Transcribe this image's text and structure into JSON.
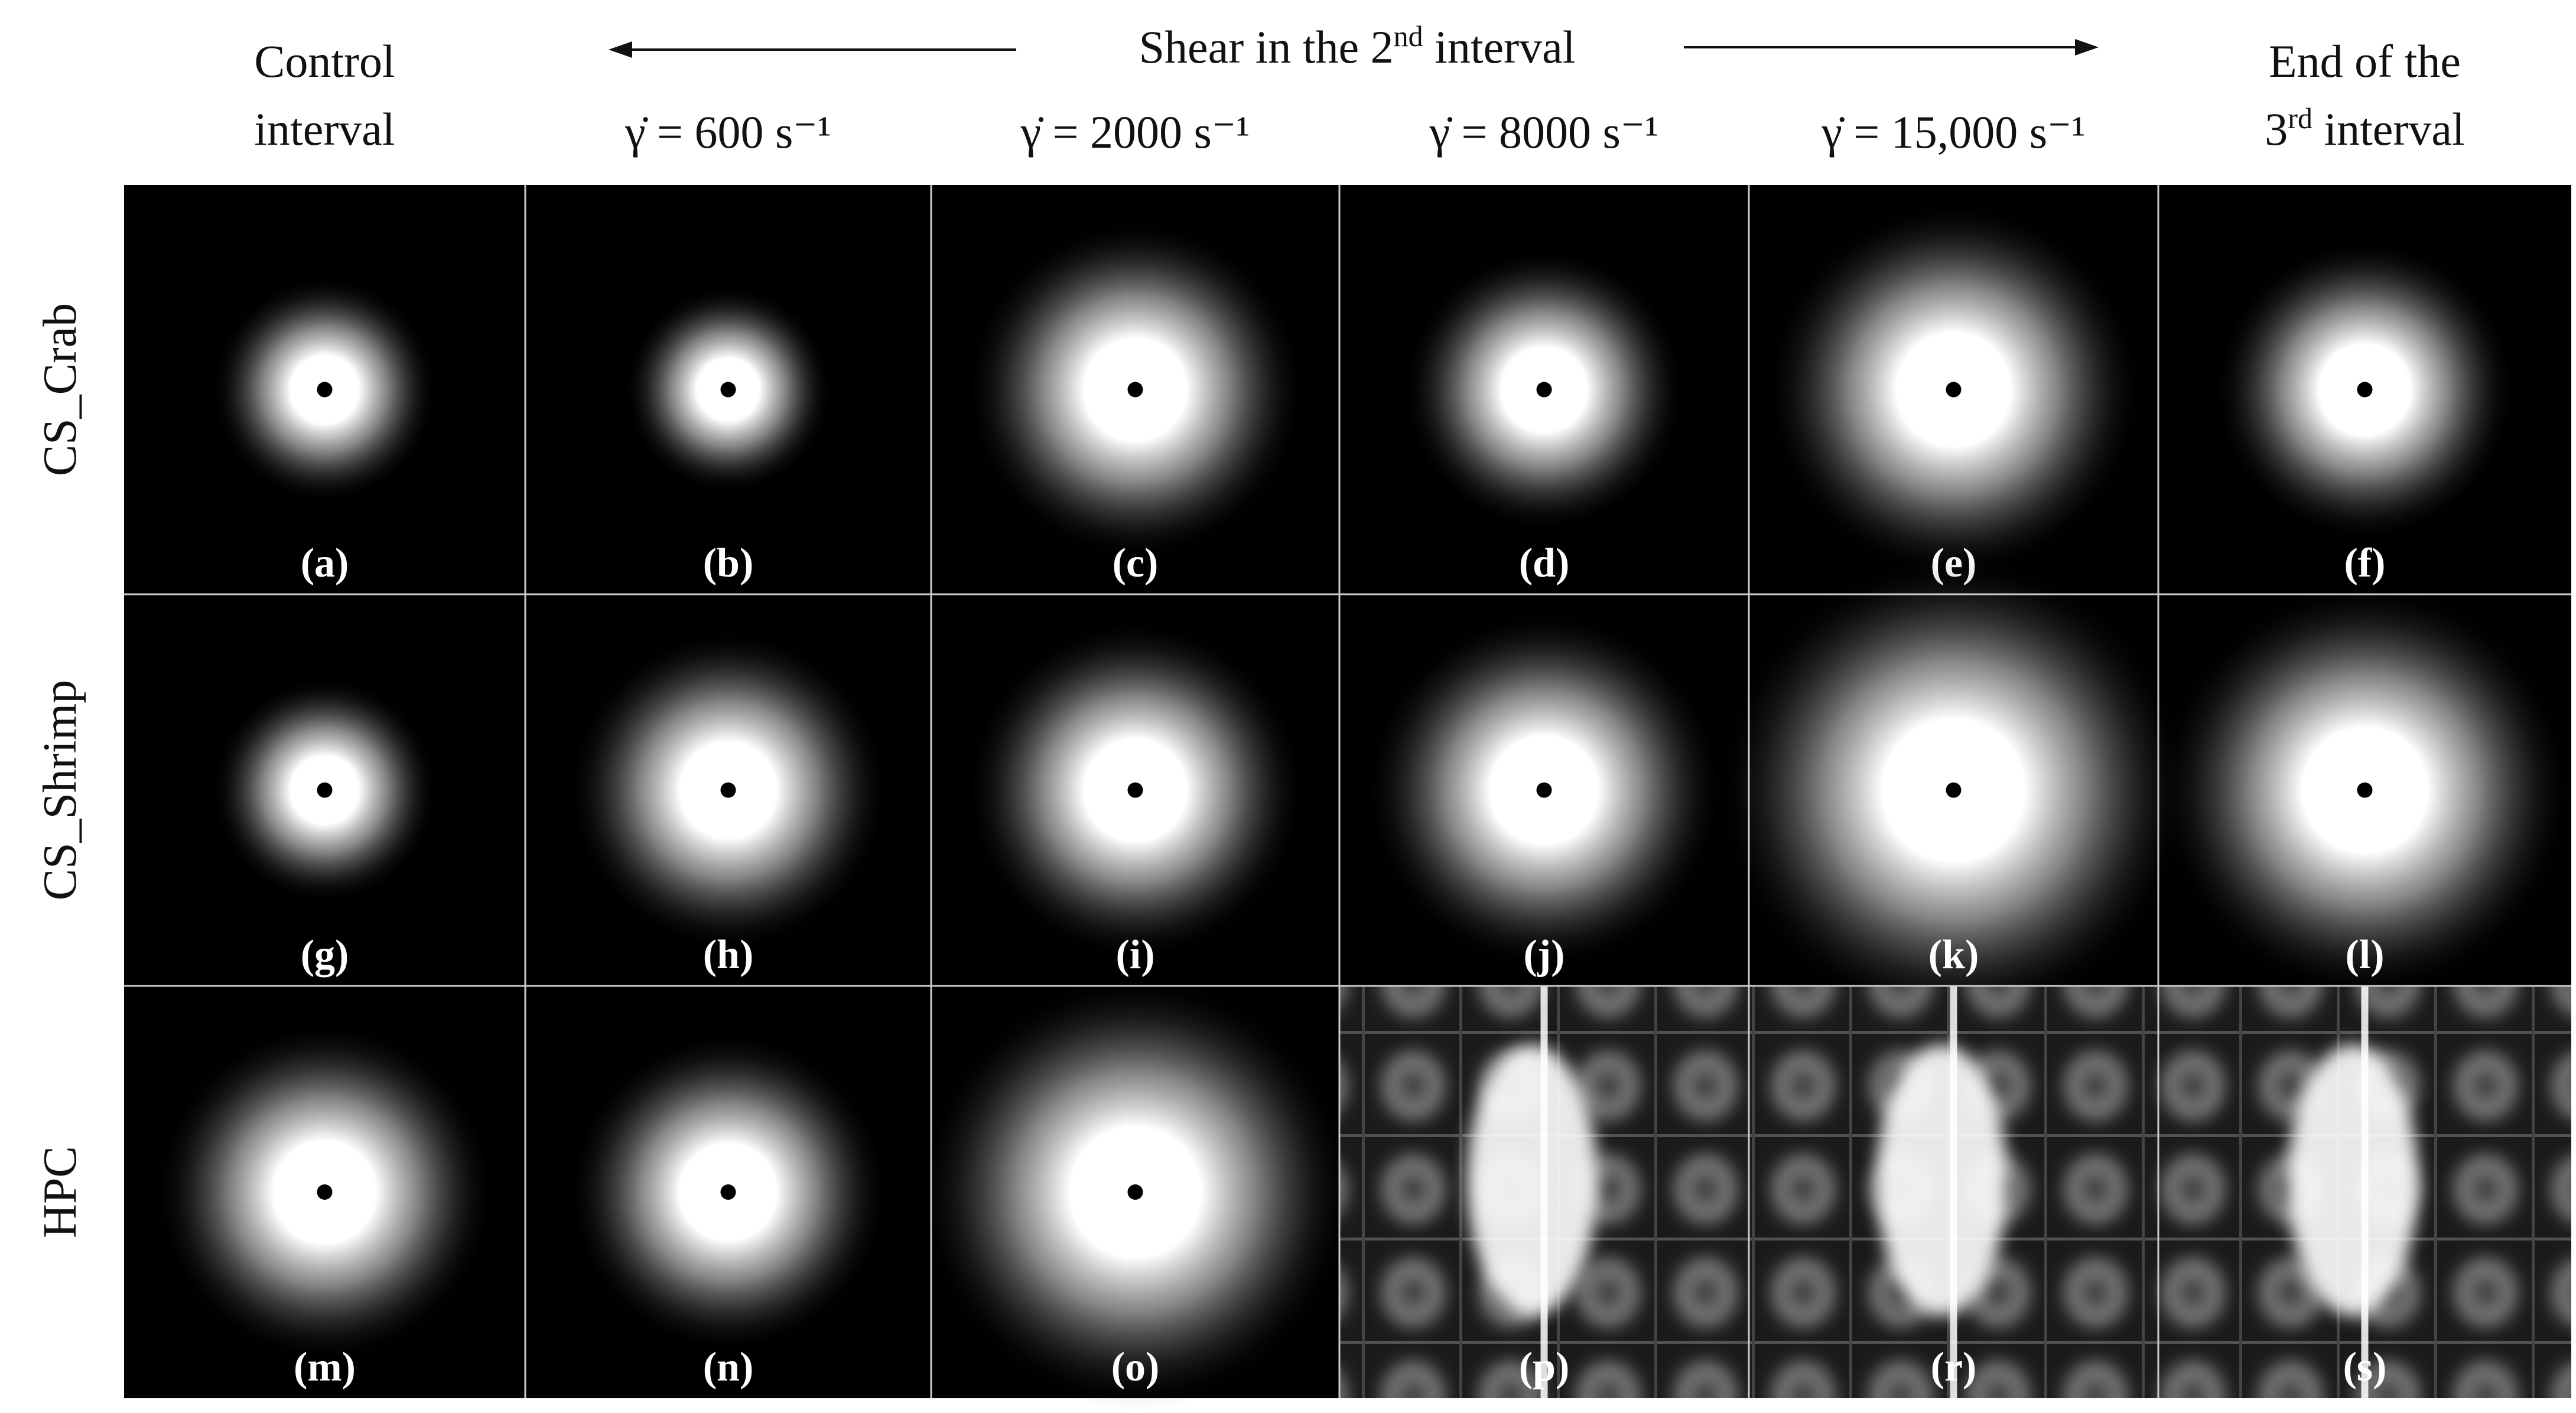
{
  "header": {
    "shear": {
      "base": "Shear in the 2",
      "sup": "nd",
      "tail": " interval"
    }
  },
  "columns": [
    {
      "lines": [
        "Control",
        "interval"
      ]
    },
    {
      "lines": [
        "γ̇ = 600 s⁻¹"
      ]
    },
    {
      "lines": [
        "γ̇ = 2000 s⁻¹"
      ]
    },
    {
      "lines": [
        "γ̇ = 8000 s⁻¹"
      ]
    },
    {
      "lines": [
        "γ̇ = 15,000 s⁻¹"
      ]
    },
    {
      "lines": [
        "End of the",
        {
          "base": "3",
          "sup": "rd",
          "tail": " interval"
        }
      ]
    }
  ],
  "rows": [
    {
      "label": "CS_Crab",
      "panels": [
        "(a)",
        "(b)",
        "(c)",
        "(d)",
        "(e)",
        "(f)"
      ]
    },
    {
      "label": "CS_Shrimp",
      "panels": [
        "(g)",
        "(h)",
        "(i)",
        "(j)",
        "(k)",
        "(l)"
      ]
    },
    {
      "label": "HPC",
      "panels": [
        "(m)",
        "(n)",
        "(o)",
        "(p)",
        "(r)",
        "(s)"
      ]
    }
  ]
}
